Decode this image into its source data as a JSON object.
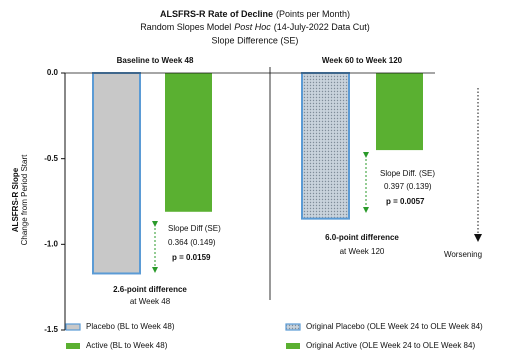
{
  "chart_data": {
    "type": "bar",
    "title": "ALSFRS-R Rate of Decline",
    "title_note": "(Points per Month)",
    "subtitle": [
      "Random Slopes Model",
      "Post Hoc",
      "(14-July-2022 Data Cut)"
    ],
    "subtitle2": "Slope Difference (SE)",
    "ylabel": "ALSFRS-R Slope",
    "ylabel2": "Change from Period Start",
    "ylim": [
      -1.5,
      0
    ],
    "yticks": [
      {
        "value": 0,
        "label": "0.0"
      },
      -0.5,
      {
        "value": -1.0,
        "label": "-1.0"
      },
      -1.5
    ],
    "worsening": "Worsening",
    "panels": [
      {
        "title": "Baseline to Week 48",
        "series": [
          {
            "name": "Placebo (BL to Week 48)",
            "color": "#c8c8c8",
            "edgecolor": "#5b9bd5",
            "hatch": false,
            "values": [
              -1.17
            ]
          },
          {
            "name": "Active (BL to Week 48)",
            "color": "#5ab031",
            "hatch": false,
            "values": [
              -0.81
            ]
          }
        ],
        "annotations": [
          "Slope Diff (SE)",
          "0.364 (0.149)",
          "p = 0.0159",
          "2.6-point difference",
          "at Week 48"
        ]
      },
      {
        "title": "Week 60 to Week 120",
        "series": [
          {
            "name": "Original Placebo (OLE Week 24 to OLE Week 84)",
            "color": "#c9d3dc",
            "edgecolor": "#5b9bd5",
            "hatch": true,
            "values": [
              -0.85
            ]
          },
          {
            "name": "Original Active (OLE Week 24 to OLE Week 84)",
            "color": "#5ab031",
            "hatch": false,
            "values": [
              -0.45
            ]
          }
        ],
        "annotations": [
          "Slope Diff. (SE)",
          "0.397 (0.139)",
          "p = 0.0057",
          "6.0-point difference",
          "at Week 120"
        ]
      }
    ]
  }
}
